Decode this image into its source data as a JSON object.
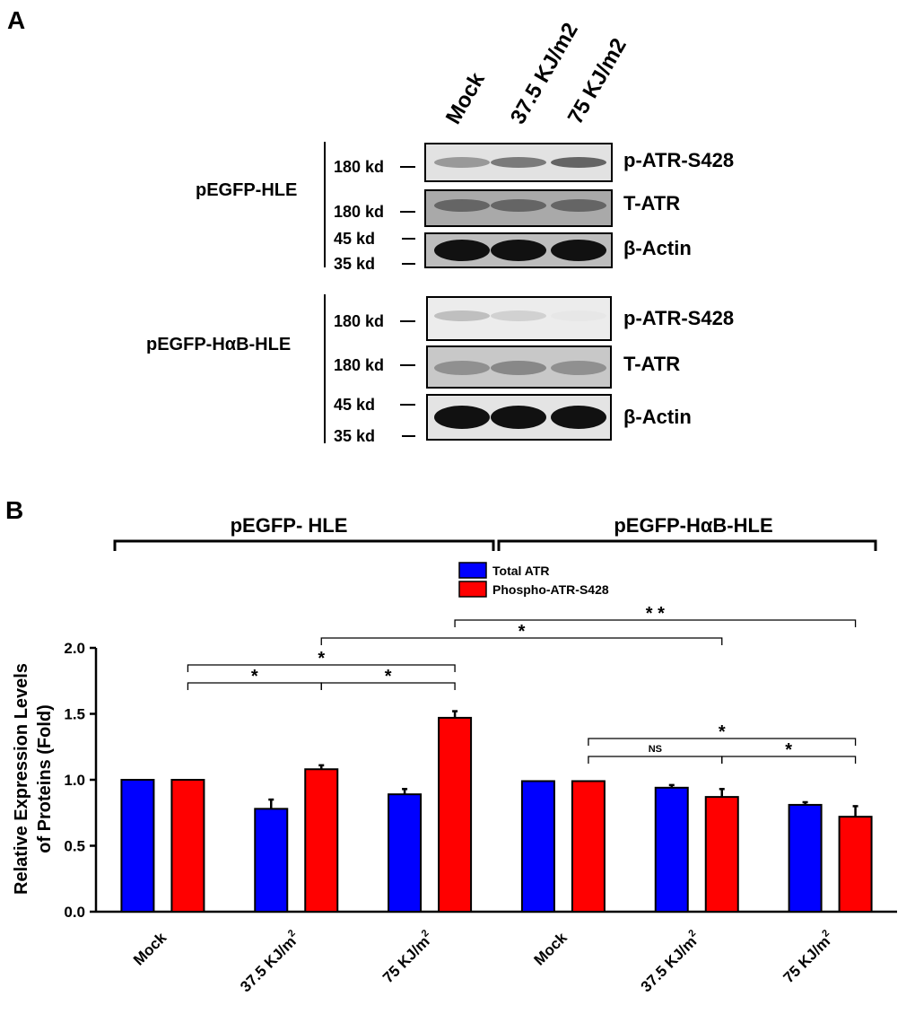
{
  "panel_a": {
    "panel_label": "A",
    "lanes": [
      "Mock",
      "37.5 KJ/m2",
      "75 KJ/m2"
    ],
    "groups": [
      {
        "name": "pEGFP-HLE",
        "rows": [
          {
            "marker": "180 kd",
            "label": "p-ATR-S428"
          },
          {
            "marker": "180 kd",
            "label": "T-ATR"
          },
          {
            "marker_top": "45 kd",
            "marker_bottom": "35 kd",
            "label": "β-Actin"
          }
        ]
      },
      {
        "name": "pEGFP-HαB-HLE",
        "rows": [
          {
            "marker": "180 kd",
            "label": "p-ATR-S428"
          },
          {
            "marker": "180 kd",
            "label": "T-ATR"
          },
          {
            "marker_top": "45 kd",
            "marker_bottom": "35 kd",
            "label": "β-Actin"
          }
        ]
      }
    ],
    "blot_intensity": {
      "pEGFP-HLE": {
        "p-ATR-S428": [
          0.35,
          0.5,
          0.6
        ],
        "T-ATR": [
          0.45,
          0.45,
          0.45
        ],
        "β-Actin": [
          1,
          1,
          1
        ]
      },
      "pEGFP-HαB-HLE": {
        "p-ATR-S428": [
          0.2,
          0.12,
          0.02
        ],
        "T-ATR": [
          0.3,
          0.35,
          0.3
        ],
        "β-Actin": [
          1,
          1,
          1
        ]
      }
    }
  },
  "panel_b": {
    "panel_label": "B",
    "group_labels": [
      "pEGFP- HLE",
      "pEGFP-HαB-HLE"
    ],
    "significance": [
      {
        "text": "*"
      },
      {
        "text": "*"
      },
      {
        "text": "*"
      },
      {
        "text": "*"
      },
      {
        "text": "* *"
      },
      {
        "text": "NS"
      },
      {
        "text": "*"
      },
      {
        "text": "*"
      }
    ]
  },
  "chart_data": {
    "type": "bar",
    "title": "",
    "ylabel": "Relative Expression Levels of Proteins (Fold)",
    "ylabel_lines": [
      "Relative Expression Levels",
      "of Proteins (Fold)"
    ],
    "xlabel": "",
    "categories": [
      "Mock",
      "37.5 KJ/m2",
      "75 KJ/m2",
      "Mock",
      "37.5 KJ/m2",
      "75 KJ/m2"
    ],
    "category_groups": [
      {
        "name": "pEGFP- HLE",
        "categories": [
          0,
          1,
          2
        ]
      },
      {
        "name": "pEGFP-HαB-HLE",
        "categories": [
          3,
          4,
          5
        ]
      }
    ],
    "series": [
      {
        "name": "Total ATR",
        "color": "#0000ff",
        "values": [
          1.0,
          0.78,
          0.89,
          0.99,
          0.94,
          0.81
        ],
        "errors": [
          0.0,
          0.07,
          0.04,
          0.0,
          0.02,
          0.02
        ]
      },
      {
        "name": "Phospho-ATR-S428",
        "color": "#ff0000",
        "values": [
          1.0,
          1.08,
          1.47,
          0.99,
          0.87,
          0.72
        ],
        "errors": [
          0.0,
          0.03,
          0.05,
          0.0,
          0.06,
          0.08
        ]
      }
    ],
    "ylim": [
      0,
      2.0
    ],
    "yticks": [
      "0.0",
      "0.5",
      "1.0",
      "1.5",
      "2.0"
    ],
    "legend_position": "top-center",
    "grid": false
  }
}
